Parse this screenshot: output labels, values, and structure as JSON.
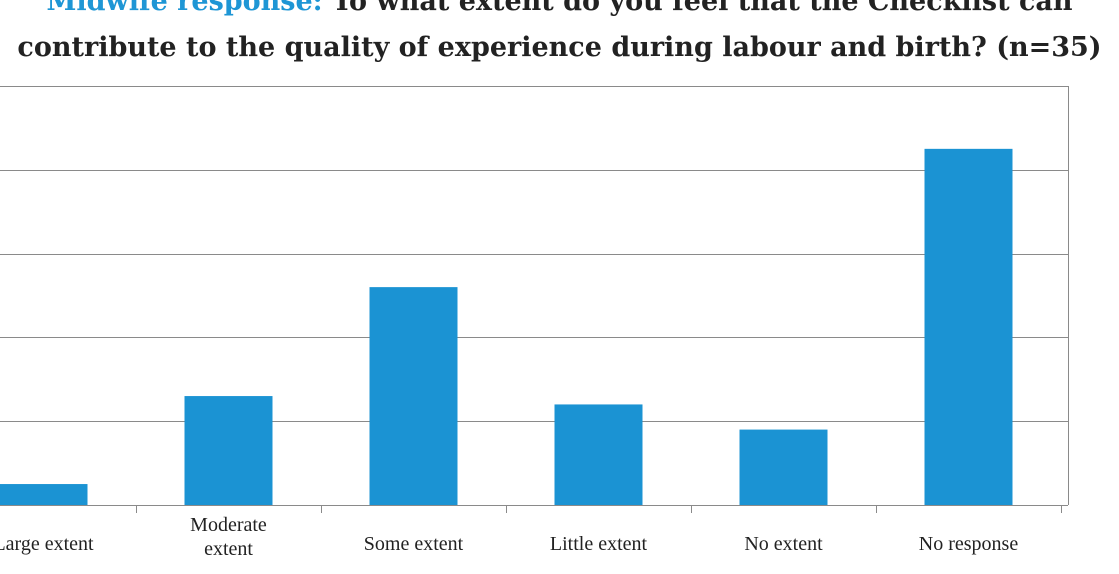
{
  "title": {
    "prefix": "Midwife response:",
    "line1_rest": "To what extent do you feel that the Checklist can",
    "line2": "contribute to the quality of experience during labour and birth? (n=35)"
  },
  "colors": {
    "bar": "#1b93d3",
    "accent": "#1e96d5",
    "grid": "#8a8a8a",
    "text": "#222222"
  },
  "chart_data": {
    "type": "bar",
    "categories": [
      [
        "Large extent"
      ],
      [
        "Moderate",
        "extent"
      ],
      [
        "Some extent"
      ],
      [
        "Little extent"
      ],
      [
        "No extent"
      ],
      [
        "No response"
      ]
    ],
    "values": [
      0.5,
      2.6,
      5.2,
      2.4,
      1.8,
      8.5
    ],
    "ylim": [
      0,
      10
    ],
    "grid": true,
    "legend": "none"
  }
}
